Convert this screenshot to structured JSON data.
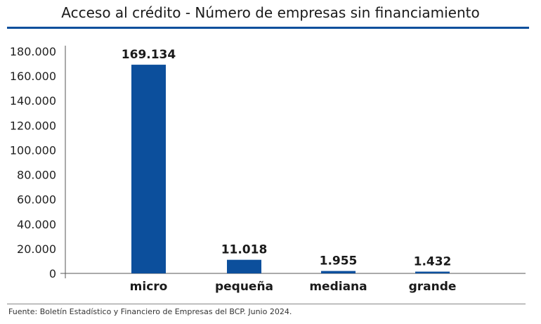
{
  "chart_data": {
    "type": "bar",
    "title": "Acceso al crédito - Número de empresas sin financiamiento",
    "categories": [
      "micro",
      "pequeña",
      "mediana",
      "grande"
    ],
    "values": [
      169134,
      11018,
      1955,
      1432
    ],
    "data_labels": [
      "169.134",
      "11.018",
      "1.955",
      "1.432"
    ],
    "yticks": [
      "0",
      "20.000",
      "40.000",
      "60.000",
      "80.000",
      "100.000",
      "120.000",
      "140.000",
      "160.000",
      "180.000"
    ],
    "ylim": [
      0,
      180000
    ],
    "xlabel": "",
    "ylabel": "",
    "grid": false,
    "legend": "none",
    "bar_color": "#0c4f9c"
  },
  "source": "Fuente: Boletín Estadístico y Financiero de Empresas del BCP. Junio 2024."
}
